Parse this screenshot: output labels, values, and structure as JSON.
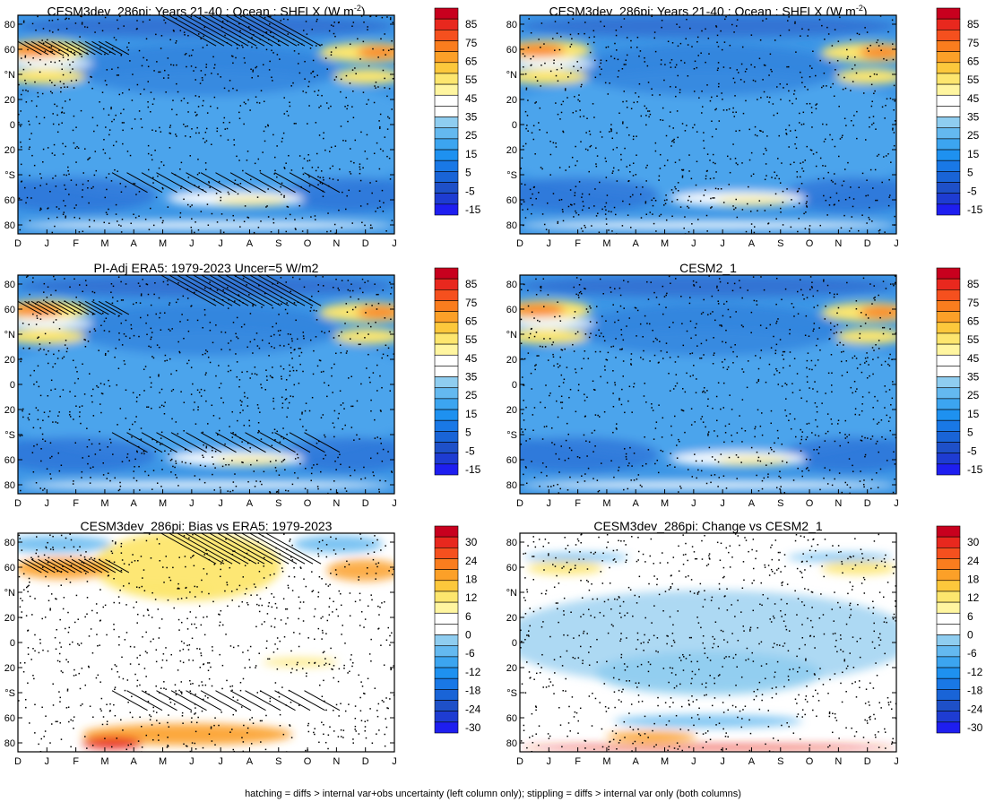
{
  "footer": "hatching = diffs > internal var+obs uncertainty (left column only); stippling = diffs > internal var only (both columns)",
  "months": [
    "D",
    "J",
    "F",
    "M",
    "A",
    "M",
    "J",
    "J",
    "A",
    "S",
    "O",
    "N",
    "D",
    "J"
  ],
  "y_ticks": [
    "80",
    "60",
    "°N",
    "20",
    "0",
    "20",
    "°S",
    "60",
    "80"
  ],
  "mean_colorbar": {
    "labels": [
      "85",
      "75",
      "65",
      "55",
      "45",
      "35",
      "25",
      "15",
      "5",
      "-5",
      "-15"
    ],
    "colors": [
      "#c8001e",
      "#e8281e",
      "#f5501e",
      "#fa7d1e",
      "#fca028",
      "#fcc83c",
      "#fde66e",
      "#fff5a0",
      "#ffffff",
      "#ffffff",
      "#8fcdf0",
      "#64b9f0",
      "#3ca5f0",
      "#1e91f0",
      "#1978e6",
      "#1964d7",
      "#1e50c8",
      "#1e3cd2",
      "#1e1ef0"
    ]
  },
  "diff_colorbar": {
    "labels": [
      "30",
      "24",
      "18",
      "12",
      "6",
      "0",
      "-6",
      "-12",
      "-18",
      "-24",
      "-30"
    ],
    "colors": [
      "#c8001e",
      "#e8281e",
      "#f5501e",
      "#fa7d1e",
      "#fca028",
      "#fcc83c",
      "#fde66e",
      "#fff5a0",
      "#ffffff",
      "#ffffff",
      "#8fcdf0",
      "#64b9f0",
      "#3ca5f0",
      "#1e91f0",
      "#1978e6",
      "#1964d7",
      "#1e50c8",
      "#1e3cd2",
      "#1e1ef0"
    ]
  },
  "chart_data": [
    {
      "type": "heatmap",
      "title": "CESM3dev_286pi: Years 21-40 : Ocean : SHFLX (W m",
      "title_sup": "-2",
      "title_end": ")",
      "variant": "mean",
      "hatching": true,
      "stippling": true
    },
    {
      "type": "heatmap",
      "title": "CESM3dev_286pi: Years 21-40 : Ocean : SHFLX (W m",
      "title_sup": "-2",
      "title_end": ")",
      "variant": "mean",
      "hatching": false,
      "stippling": true
    },
    {
      "type": "heatmap",
      "title": "PI-Adj ERA5: 1979-2023 Uncer=5 W/m2",
      "variant": "mean",
      "hatching": true,
      "stippling": true
    },
    {
      "type": "heatmap",
      "title": "CESM2_1",
      "variant": "mean",
      "hatching": false,
      "stippling": true
    },
    {
      "type": "heatmap",
      "title": "CESM3dev_286pi: Bias vs ERA5: 1979-2023",
      "variant": "bias",
      "hatching": true,
      "stippling": true
    },
    {
      "type": "heatmap",
      "title": "CESM3dev_286pi: Change vs CESM2_1",
      "variant": "change",
      "hatching": false,
      "stippling": true
    }
  ]
}
